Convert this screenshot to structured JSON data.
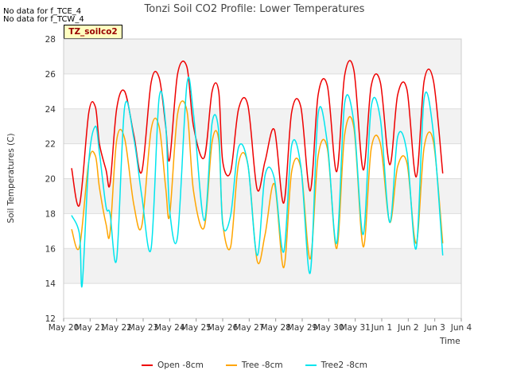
{
  "notes": [
    "No data for f_TCE_4",
    "No data for f_TCW_4"
  ],
  "tag_label": "TZ_soilco2",
  "chart_data": {
    "type": "line",
    "title": "Tonzi Soil CO2 Profile: Lower Temperatures",
    "xlabel": "Time",
    "ylabel": "Soil Temperatures (C)",
    "ylim": [
      12,
      28
    ],
    "yticks": [
      12,
      14,
      16,
      18,
      20,
      22,
      24,
      26,
      28
    ],
    "xlim": [
      0,
      15
    ],
    "xticks": [
      {
        "x": 0,
        "label": "May 20"
      },
      {
        "x": 1,
        "label": "May 21"
      },
      {
        "x": 2,
        "label": "May 22"
      },
      {
        "x": 3,
        "label": "May 23"
      },
      {
        "x": 4,
        "label": "May 24"
      },
      {
        "x": 5,
        "label": "May 25"
      },
      {
        "x": 6,
        "label": "May 26"
      },
      {
        "x": 7,
        "label": "May 27"
      },
      {
        "x": 8,
        "label": "May 28"
      },
      {
        "x": 9,
        "label": "May 29"
      },
      {
        "x": 10,
        "label": "May 30"
      },
      {
        "x": 11,
        "label": "May 31"
      },
      {
        "x": 12,
        "label": "Jun 1"
      },
      {
        "x": 13,
        "label": "Jun 2"
      },
      {
        "x": 14,
        "label": "Jun 3"
      },
      {
        "x": 15,
        "label": "Jun 4"
      }
    ],
    "grid": true,
    "legend_position": "bottom",
    "series": [
      {
        "name": "Open -8cm",
        "color": "#ee0000",
        "x": [
          0.3,
          0.6,
          0.95,
          1.2,
          1.35,
          1.6,
          1.75,
          2.0,
          2.3,
          2.65,
          2.95,
          3.3,
          3.6,
          3.85,
          4.0,
          4.3,
          4.65,
          4.9,
          5.3,
          5.6,
          5.85,
          6.0,
          6.3,
          6.6,
          6.95,
          7.3,
          7.6,
          7.95,
          8.3,
          8.6,
          8.95,
          9.3,
          9.6,
          9.95,
          10.3,
          10.6,
          10.95,
          11.3,
          11.6,
          11.95,
          12.3,
          12.6,
          12.95,
          13.3,
          13.6,
          13.95,
          14.3
        ],
        "y": [
          20.6,
          18.5,
          23.8,
          24.1,
          22.0,
          20.5,
          19.7,
          24.0,
          25.0,
          22.5,
          20.4,
          25.5,
          25.8,
          23.0,
          21.1,
          26.0,
          26.4,
          23.0,
          21.2,
          25.0,
          25.0,
          21.0,
          20.4,
          24.0,
          24.2,
          19.4,
          21.0,
          22.8,
          18.6,
          23.8,
          24.1,
          19.3,
          24.8,
          25.3,
          20.4,
          25.9,
          26.2,
          20.5,
          25.3,
          25.5,
          20.8,
          24.8,
          25.1,
          20.1,
          25.6,
          25.6,
          20.3
        ]
      },
      {
        "name": "Tree -8cm",
        "color": "#ffa500",
        "x": [
          0.3,
          0.6,
          0.95,
          1.2,
          1.35,
          1.6,
          1.75,
          2.0,
          2.3,
          2.65,
          2.95,
          3.3,
          3.6,
          3.85,
          4.0,
          4.3,
          4.65,
          4.9,
          5.3,
          5.6,
          5.85,
          6.0,
          6.3,
          6.6,
          6.95,
          7.3,
          7.6,
          7.95,
          8.3,
          8.6,
          8.95,
          9.3,
          9.6,
          9.95,
          10.3,
          10.6,
          10.95,
          11.3,
          11.6,
          11.95,
          12.3,
          12.6,
          12.95,
          13.3,
          13.6,
          13.95,
          14.3
        ],
        "y": [
          17.1,
          16.1,
          21.0,
          21.3,
          19.5,
          17.4,
          16.9,
          22.2,
          22.3,
          18.5,
          17.3,
          22.8,
          23.0,
          19.5,
          17.9,
          23.7,
          23.9,
          19.3,
          17.2,
          22.1,
          22.2,
          17.5,
          16.1,
          20.9,
          20.8,
          15.3,
          16.8,
          19.7,
          14.9,
          20.4,
          20.6,
          15.4,
          21.3,
          21.7,
          16.0,
          22.5,
          22.9,
          16.1,
          21.7,
          22.0,
          17.5,
          20.7,
          20.9,
          16.3,
          21.8,
          22.1,
          16.3
        ]
      },
      {
        "name": "Tree2 -8cm",
        "color": "#00e5ee",
        "x": [
          0.3,
          0.6,
          0.7,
          0.95,
          1.2,
          1.35,
          1.6,
          1.75,
          2.0,
          2.3,
          2.65,
          2.95,
          3.3,
          3.6,
          3.85,
          4.0,
          4.3,
          4.65,
          4.9,
          5.3,
          5.6,
          5.85,
          6.0,
          6.3,
          6.6,
          6.95,
          7.3,
          7.6,
          7.95,
          8.3,
          8.6,
          8.95,
          9.3,
          9.6,
          9.95,
          10.3,
          10.6,
          10.95,
          11.3,
          11.6,
          11.95,
          12.3,
          12.6,
          12.95,
          13.3,
          13.6,
          13.95,
          14.3
        ],
        "y": [
          17.9,
          16.8,
          13.9,
          21.0,
          23.0,
          21.5,
          18.4,
          18.0,
          15.4,
          24.1,
          22.3,
          19.0,
          16.0,
          24.6,
          23.1,
          18.2,
          16.7,
          25.4,
          23.7,
          17.6,
          23.2,
          22.7,
          17.4,
          17.9,
          21.8,
          20.8,
          15.6,
          20.2,
          20.0,
          15.8,
          21.9,
          20.7,
          14.6,
          23.7,
          22.0,
          16.3,
          24.3,
          23.2,
          16.8,
          24.1,
          23.4,
          17.5,
          22.4,
          21.5,
          16.0,
          24.6,
          22.6,
          15.6
        ]
      }
    ]
  }
}
